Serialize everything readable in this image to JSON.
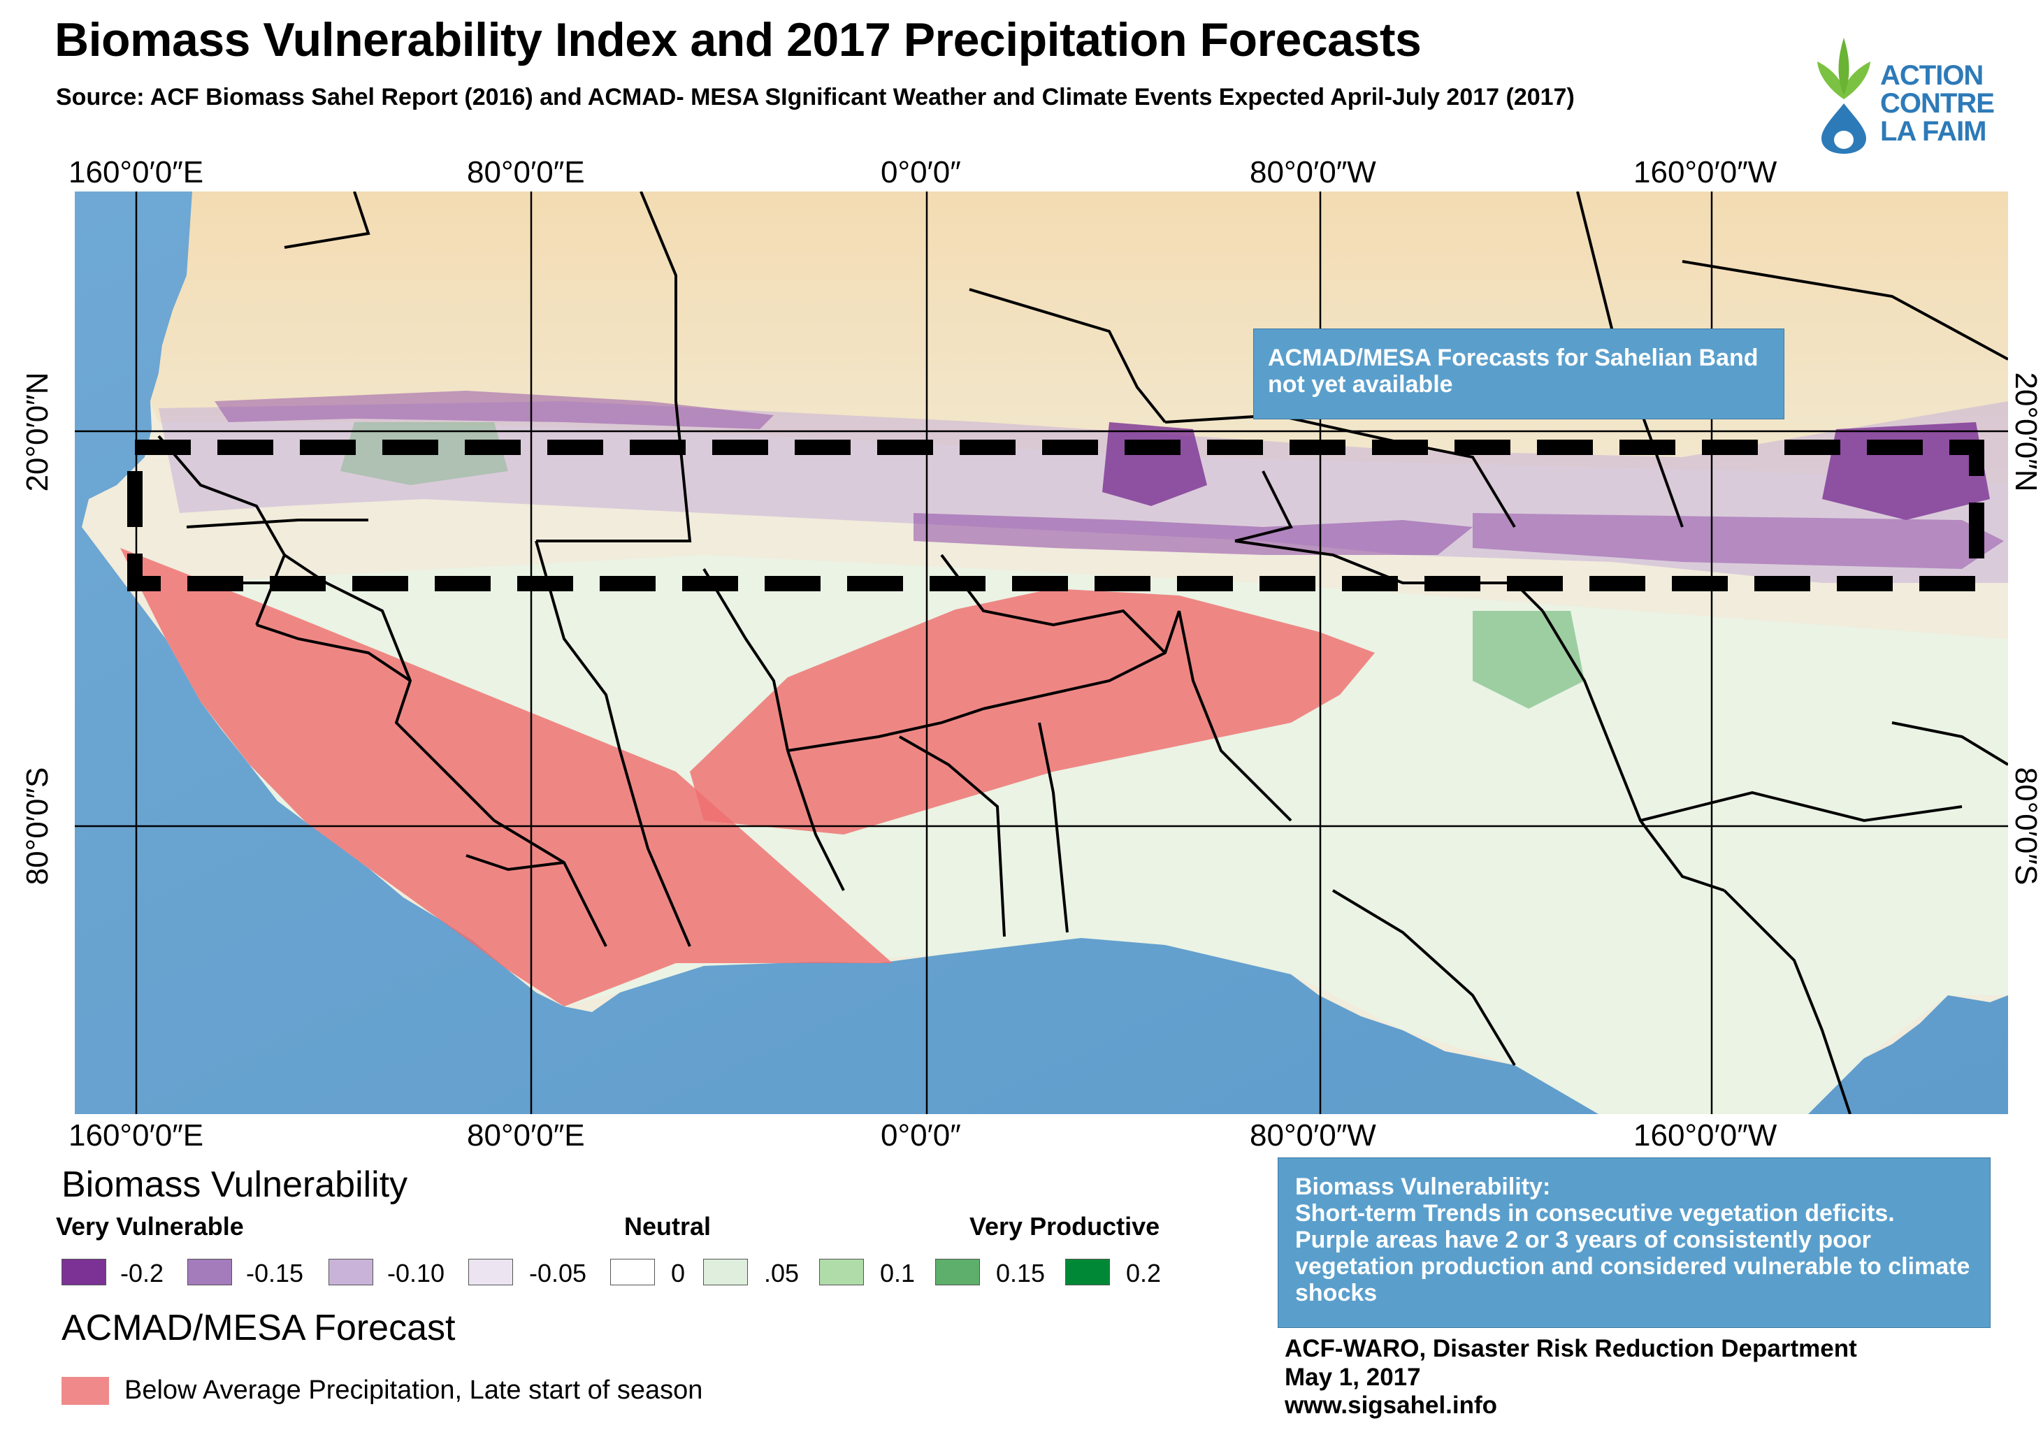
{
  "title": "Biomass Vulnerability Index and 2017 Precipitation Forecasts",
  "subtitle": "Source: ACF Biomass Sahel Report (2016) and ACMAD- MESA SIgnificant Weather and Climate Events Expected April-July 2017 (2017)",
  "logo": {
    "lines": [
      "ACTION",
      "CONTRE",
      "LA FAIM"
    ]
  },
  "graticule": {
    "top": [
      "160°0′0″E",
      "80°0′0″E",
      "0°0′0″",
      "80°0′0″W",
      "160°0′0″W"
    ],
    "bottom": [
      "160°0′0″E",
      "80°0′0″E",
      "0°0′0″",
      "80°0′0″W",
      "160°0′0″W"
    ],
    "left": [
      "20°0′0″N",
      "80°0′0″S"
    ],
    "right": [
      "20°0′0″N",
      "80°0′0″S"
    ]
  },
  "map": {
    "note": "ACMAD/MESA Forecasts for Sahelian Band not yet available"
  },
  "legend": {
    "title": "Biomass Vulnerability",
    "heads": {
      "low": "Very Vulnerable",
      "mid": "Neutral",
      "high": "Very Productive"
    },
    "items": [
      {
        "label": "-0.2",
        "color": "#7b3294"
      },
      {
        "label": "-0.15",
        "color": "#a47bbb"
      },
      {
        "label": "-0.10",
        "color": "#c9b3d9"
      },
      {
        "label": "-0.05",
        "color": "#ece4f1"
      },
      {
        "label": "0",
        "color": "#ffffff"
      },
      {
        "label": ".05",
        "color": "#dfeedd"
      },
      {
        "label": "0.1",
        "color": "#b0dcaa"
      },
      {
        "label": "0.15",
        "color": "#5daf6b"
      },
      {
        "label": "0.2",
        "color": "#008837"
      }
    ]
  },
  "forecast_legend": {
    "title": "ACMAD/MESA Forecast",
    "label": "Below Average Precipitation, Late start of season",
    "color": "#f08a8a"
  },
  "info_box": {
    "heading": "Biomass Vulnerability:",
    "text": "Short-term Trends in consecutive vegetation deficits. Purple areas have 2 or 3 years of consistently poor vegetation production and considered vulnerable to climate shocks"
  },
  "credits": {
    "dept": "ACF-WARO, Disaster Risk Reduction Department",
    "date": "May 1, 2017",
    "url": "www.sigsahel.info"
  }
}
